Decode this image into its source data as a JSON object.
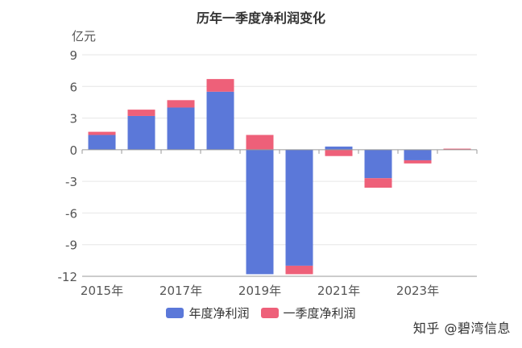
{
  "chart_data": {
    "type": "bar",
    "stacked": true,
    "title": "历年一季度净利润变化",
    "yunit": "亿元",
    "xlabel": "",
    "ylabel": "",
    "categories": [
      "2015年",
      "2016年",
      "2017年",
      "2018年",
      "2019年",
      "2020年",
      "2021年",
      "2022年",
      "2023年",
      "2024年"
    ],
    "x_tick_labels": [
      "2015年",
      "2017年",
      "2019年",
      "2021年",
      "2023年"
    ],
    "yticks": [
      9,
      6,
      3,
      0,
      -3,
      -6,
      -9,
      -12
    ],
    "ylim": [
      -12,
      9
    ],
    "grid": true,
    "legend_position": "bottom",
    "series": [
      {
        "name": "年度净利润",
        "color": "#5b78d9",
        "values": [
          1.4,
          3.2,
          4.0,
          5.5,
          -11.8,
          -11.0,
          0.3,
          -2.7,
          -1.0,
          0.0
        ]
      },
      {
        "name": "一季度净利润",
        "color": "#ee6079",
        "values": [
          0.3,
          0.6,
          0.7,
          1.2,
          1.4,
          -0.8,
          -0.6,
          -0.9,
          -0.3,
          0.1
        ]
      }
    ]
  },
  "watermark": "知乎 @碧湾信息"
}
